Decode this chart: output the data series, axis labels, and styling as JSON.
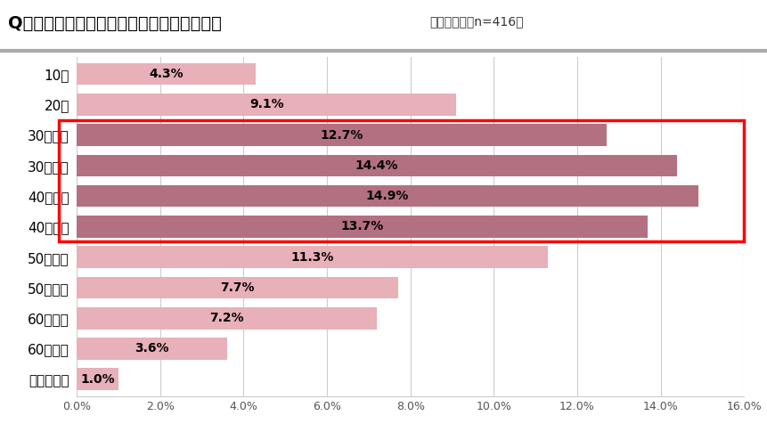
{
  "title": "Q．白髪が出始めた年齢を教えてください。",
  "subtitle": "（単数回答／n=416）",
  "categories": [
    "10代",
    "20代",
    "30代前半",
    "30代後半",
    "40代前半",
    "40代後半",
    "50代前半",
    "50代後半",
    "60代前半",
    "60代後半",
    "分からない"
  ],
  "values": [
    4.3,
    9.1,
    12.7,
    14.4,
    14.9,
    13.7,
    11.3,
    7.7,
    7.2,
    3.6,
    1.0
  ],
  "bar_color_light": "#e8b0b8",
  "bar_color_dark": "#b37080",
  "highlighted_indices": [
    2,
    3,
    4,
    5
  ],
  "xlim": [
    0,
    16
  ],
  "xtick_values": [
    0,
    2,
    4,
    6,
    8,
    10,
    12,
    14,
    16
  ],
  "rect_highlight_color": "red",
  "background_color": "#ffffff",
  "grid_color": "#cccccc",
  "title_fontsize": 14,
  "subtitle_fontsize": 10,
  "label_fontsize": 11,
  "bar_label_fontsize": 10,
  "bar_height": 0.72,
  "label_inside_threshold": 2.5
}
